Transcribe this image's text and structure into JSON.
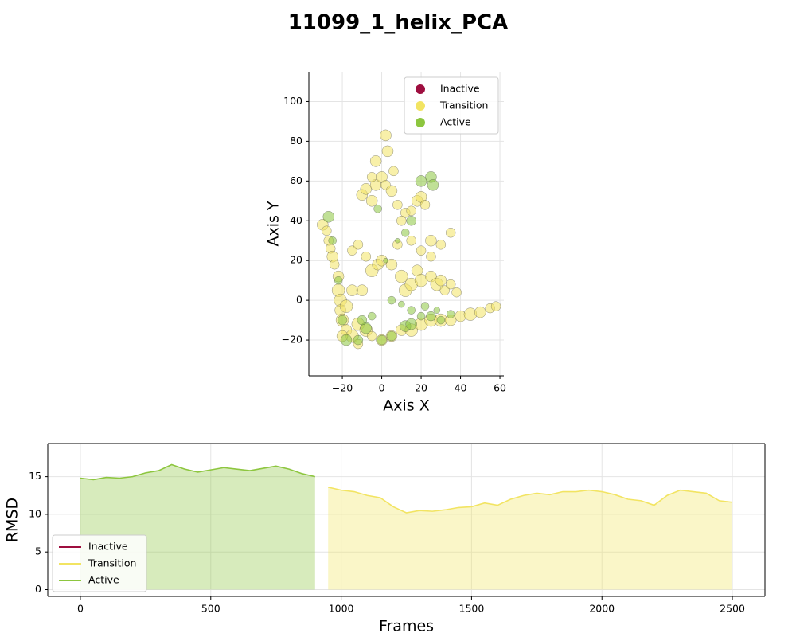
{
  "title": "11099_1_helix_PCA",
  "chart_data": [
    {
      "type": "scatter",
      "xlabel": "Axis X",
      "ylabel": "Axis Y",
      "xlim": [
        -37,
        62
      ],
      "xticks": [
        {
          "value": -20,
          "label": "−20"
        },
        0,
        20,
        40,
        60
      ],
      "ylim": [
        -38,
        115
      ],
      "yticks": [
        {
          "value": -20,
          "label": "−20"
        },
        0,
        20,
        40,
        60,
        80,
        100
      ],
      "grid": true,
      "legend": "upper right",
      "series": [
        {
          "name": "Inactive",
          "color": "#9e0e3f",
          "x": [],
          "values": [],
          "sizes": []
        },
        {
          "name": "Transition",
          "color": "#f2e462",
          "x": [
            -30,
            -28,
            -27,
            -26,
            -25,
            -24,
            -22,
            -22,
            -21,
            -21,
            -20,
            -18,
            -15,
            -12,
            -8,
            -5,
            0,
            5,
            10,
            15,
            20,
            25,
            30,
            35,
            40,
            45,
            50,
            55,
            58,
            -10,
            -15,
            -12,
            -8,
            -5,
            -2,
            0,
            5,
            10,
            12,
            15,
            18,
            20,
            25,
            28,
            30,
            32,
            35,
            38,
            -5,
            -10,
            -8,
            -3,
            -5,
            0,
            2,
            5,
            8,
            12,
            18,
            20,
            22,
            15,
            10,
            -3,
            3,
            2,
            6,
            25,
            30,
            35,
            25,
            20,
            8,
            15,
            -20,
            -12,
            -15,
            -18
          ],
          "values": [
            38,
            35,
            30,
            26,
            22,
            18,
            12,
            5,
            0,
            -5,
            -10,
            -15,
            -18,
            -12,
            -15,
            -18,
            -20,
            -18,
            -15,
            -15,
            -12,
            -10,
            -10,
            -10,
            -8,
            -7,
            -6,
            -4,
            -3,
            5,
            25,
            28,
            22,
            15,
            18,
            20,
            18,
            12,
            5,
            8,
            15,
            10,
            12,
            8,
            10,
            5,
            8,
            4,
            50,
            53,
            56,
            58,
            62,
            62,
            58,
            55,
            48,
            44,
            50,
            52,
            48,
            45,
            40,
            70,
            75,
            83,
            65,
            30,
            28,
            34,
            22,
            25,
            28,
            30,
            -18,
            -22,
            5,
            -3
          ],
          "sizes": [
            7,
            6,
            6,
            6,
            7,
            6,
            7,
            8,
            8,
            7,
            8,
            7,
            8,
            8,
            8,
            6,
            7,
            7,
            7,
            8,
            8,
            8,
            8,
            7,
            7,
            8,
            7,
            6,
            6,
            7,
            6,
            6,
            6,
            8,
            7,
            7,
            7,
            8,
            8,
            8,
            7,
            8,
            7,
            8,
            7,
            6,
            6,
            6,
            7,
            7,
            7,
            7,
            6,
            7,
            6,
            7,
            6,
            6,
            7,
            7,
            6,
            6,
            6,
            7,
            7,
            7,
            6,
            7,
            6,
            6,
            6,
            6,
            6,
            6,
            7,
            6,
            7,
            8
          ]
        },
        {
          "name": "Active",
          "color": "#8dc63f",
          "x": [
            -27,
            -25,
            -22,
            -20,
            -18,
            -12,
            -8,
            -5,
            -10,
            0,
            5,
            12,
            15,
            20,
            22,
            25,
            28,
            35,
            20,
            25,
            26,
            15,
            12,
            8,
            -2,
            2,
            5,
            10,
            30,
            15
          ],
          "values": [
            42,
            30,
            10,
            -10,
            -20,
            -20,
            -14,
            -8,
            -10,
            -20,
            -18,
            -13,
            -5,
            -8,
            -3,
            -8,
            -5,
            -7,
            60,
            62,
            58,
            40,
            34,
            30,
            46,
            20,
            0,
            -2,
            -10,
            -12
          ],
          "sizes": [
            7,
            5,
            5,
            6,
            7,
            6,
            7,
            5,
            6,
            6,
            6,
            7,
            5,
            5,
            5,
            6,
            4,
            5,
            7,
            7,
            7,
            6,
            5,
            3,
            5,
            3,
            5,
            4,
            5,
            7
          ]
        }
      ]
    },
    {
      "type": "line",
      "xlabel": "Frames",
      "ylabel": "RMSD",
      "xlim": [
        -125,
        2625
      ],
      "xticks": [
        0,
        500,
        1000,
        1500,
        2000,
        2500
      ],
      "ylim": [
        -0.9,
        19.4
      ],
      "yticks": [
        0,
        5,
        10,
        15
      ],
      "grid": true,
      "legend": "lower left",
      "x": [
        0,
        50,
        100,
        150,
        200,
        250,
        300,
        350,
        400,
        450,
        500,
        550,
        600,
        650,
        700,
        750,
        800,
        850,
        900,
        950,
        1000,
        1050,
        1100,
        1150,
        1200,
        1250,
        1300,
        1350,
        1400,
        1450,
        1500,
        1550,
        1600,
        1650,
        1700,
        1750,
        1800,
        1850,
        1900,
        1950,
        2000,
        2050,
        2100,
        2150,
        2200,
        2250,
        2300,
        2350,
        2400,
        2450,
        2500
      ],
      "series": [
        {
          "name": "Inactive",
          "color": "#9e0e3f",
          "values": [
            null,
            null,
            null,
            null,
            null,
            null,
            null,
            null,
            null,
            null,
            null,
            null,
            null,
            null,
            null,
            null,
            null,
            null,
            null,
            null,
            null,
            null,
            null,
            null,
            null,
            null,
            null,
            null,
            null,
            null,
            null,
            null,
            null,
            null,
            null,
            null,
            null,
            null,
            null,
            null,
            null,
            null,
            null,
            null,
            null,
            null,
            null,
            null,
            null,
            null,
            null
          ]
        },
        {
          "name": "Transition",
          "color": "#f2e462",
          "values": [
            null,
            null,
            null,
            null,
            null,
            null,
            null,
            null,
            null,
            null,
            null,
            null,
            null,
            null,
            null,
            null,
            null,
            null,
            null,
            13.6,
            13.2,
            13.0,
            12.5,
            12.2,
            11.0,
            10.2,
            10.5,
            10.4,
            10.6,
            10.9,
            11.0,
            11.5,
            11.2,
            12.0,
            12.5,
            12.8,
            12.6,
            13.0,
            13.0,
            13.2,
            13.0,
            12.6,
            12.0,
            11.8,
            11.2,
            12.5,
            13.2,
            13.0,
            12.8,
            11.8,
            11.6
          ]
        },
        {
          "name": "Active",
          "color": "#8dc63f",
          "values": [
            14.8,
            14.6,
            14.9,
            14.8,
            15.0,
            15.5,
            15.8,
            16.6,
            16.0,
            15.6,
            15.9,
            16.2,
            16.0,
            15.8,
            16.1,
            16.4,
            16.0,
            15.4,
            15.0,
            null,
            null,
            null,
            null,
            null,
            null,
            null,
            null,
            null,
            null,
            null,
            null,
            null,
            null,
            null,
            null,
            null,
            null,
            null,
            null,
            null,
            null,
            null,
            null,
            null,
            null,
            null,
            null,
            null,
            null,
            null,
            null
          ]
        }
      ]
    }
  ]
}
